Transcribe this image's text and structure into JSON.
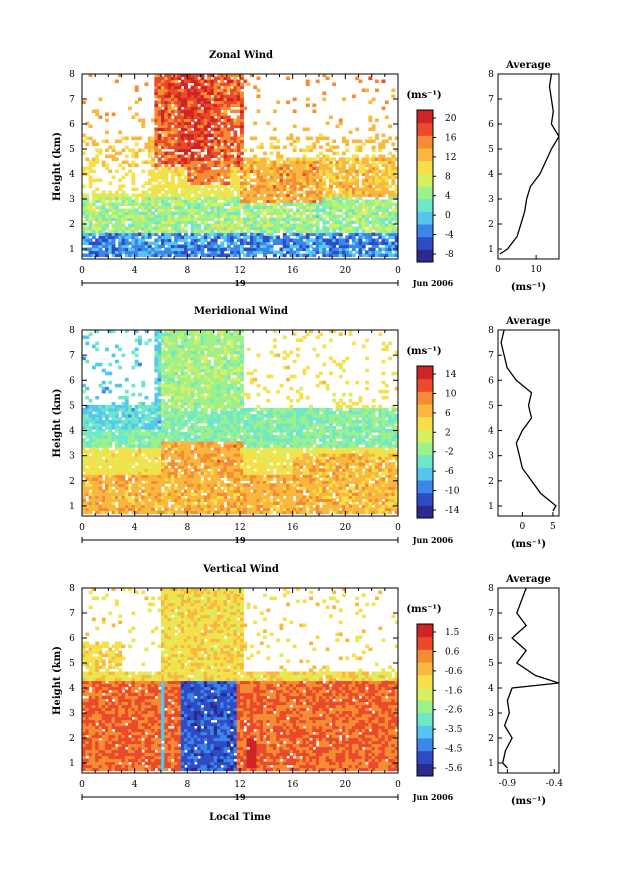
{
  "chart_data": [
    {
      "type": "heatmap",
      "title": "Zonal Wind",
      "ylabel": "Height (km)",
      "ylim": [
        0.6,
        8
      ],
      "xlim": [
        0,
        24
      ],
      "yticks": [
        "1",
        "2",
        "3",
        "4",
        "5",
        "6",
        "7",
        "8"
      ],
      "xticks": [
        "0",
        "4",
        "8",
        "12",
        "16",
        "20",
        "0"
      ],
      "date_label": "19",
      "month_label": "Jun 2006",
      "colorbar": {
        "unit": "(ms⁻¹)",
        "ticks": [
          "20",
          "16",
          "12",
          "8",
          "4",
          "0",
          "-4",
          "-8"
        ],
        "range": [
          -10,
          22
        ]
      },
      "features": [
        {
          "x": [
            6,
            12
          ],
          "y": [
            4.5,
            8
          ],
          "value_range": [
            14,
            20
          ]
        },
        {
          "x": [
            12,
            18
          ],
          "y": [
            3,
            4.5
          ],
          "value_range": [
            12,
            16
          ]
        },
        {
          "x": [
            0,
            24
          ],
          "y": [
            0.6,
            1.5
          ],
          "value_range": [
            -8,
            4
          ]
        }
      ],
      "profile": {
        "title": "Average",
        "xlabel": "(ms⁻¹)",
        "xticks": [
          "0",
          "10"
        ],
        "xlim": [
          0,
          16
        ],
        "height": [
          0.8,
          1.0,
          1.5,
          2.0,
          2.5,
          3.0,
          3.5,
          4.0,
          4.5,
          5.0,
          5.5,
          6.0,
          6.5,
          7.0,
          7.5,
          8.0
        ],
        "value": [
          0.5,
          2.5,
          5,
          6,
          7,
          7.5,
          8.5,
          11,
          12.5,
          14,
          16,
          14,
          14.5,
          14,
          13.5,
          14
        ]
      }
    },
    {
      "type": "heatmap",
      "title": "Meridional Wind",
      "ylabel": "Height (km)",
      "ylim": [
        0.6,
        8
      ],
      "xlim": [
        0,
        24
      ],
      "yticks": [
        "1",
        "2",
        "3",
        "4",
        "5",
        "6",
        "7",
        "8"
      ],
      "xticks": [
        "0",
        "4",
        "8",
        "12",
        "16",
        "20",
        "0"
      ],
      "date_label": "19",
      "month_label": "Jun 2006",
      "colorbar": {
        "unit": "(ms⁻¹)",
        "ticks": [
          "14",
          "10",
          "6",
          "2",
          "-2",
          "-6",
          "-10",
          "-14"
        ],
        "range": [
          -16,
          16
        ]
      },
      "features": [
        {
          "x": [
            6,
            12
          ],
          "y": [
            5,
            8
          ],
          "value_range": [
            -6,
            2
          ]
        },
        {
          "x": [
            0,
            24
          ],
          "y": [
            3.5,
            5
          ],
          "value_range": [
            -8,
            -2
          ]
        },
        {
          "x": [
            6,
            12
          ],
          "y": [
            1,
            3.5
          ],
          "value_range": [
            4,
            10
          ]
        }
      ],
      "profile": {
        "title": "Average",
        "xlabel": "(ms⁻¹)",
        "xticks": [
          "0",
          "5"
        ],
        "xlim": [
          -4,
          6
        ],
        "height": [
          0.8,
          1.0,
          1.5,
          2.0,
          2.5,
          3.0,
          3.5,
          4.0,
          4.5,
          5.0,
          5.5,
          6.0,
          6.5,
          7.0,
          7.5,
          8.0
        ],
        "value": [
          5,
          5.5,
          3,
          1.5,
          0,
          -0.5,
          -1,
          0,
          1.5,
          1,
          1.5,
          -1,
          -2.5,
          -3,
          -3.5,
          -3
        ]
      }
    },
    {
      "type": "heatmap",
      "title": "Vertical Wind",
      "ylabel": "Height (km)",
      "xlabel": "Local Time",
      "ylim": [
        0.6,
        8
      ],
      "xlim": [
        0,
        24
      ],
      "yticks": [
        "1",
        "2",
        "3",
        "4",
        "5",
        "6",
        "7",
        "8"
      ],
      "xticks": [
        "0",
        "4",
        "8",
        "12",
        "16",
        "20",
        "0"
      ],
      "date_label": "19",
      "month_label": "Jun 2006",
      "colorbar": {
        "unit": "(ms⁻¹)",
        "ticks": [
          "1.5",
          "0.6",
          "-0.6",
          "-1.6",
          "-2.6",
          "-3.5",
          "-4.5",
          "-5.6"
        ],
        "range": [
          -6,
          2
        ]
      },
      "features": [
        {
          "x": [
            7.5,
            11.5
          ],
          "y": [
            0.6,
            4.2
          ],
          "value_range": [
            -5.6,
            -4
          ]
        },
        {
          "x": [
            12,
            13
          ],
          "y": [
            0.8,
            2
          ],
          "value_range": [
            1,
            1.5
          ]
        }
      ],
      "profile": {
        "title": "Average",
        "xlabel": "(ms⁻¹)",
        "xticks": [
          "-0.9",
          "-0.4"
        ],
        "xlim": [
          -1,
          -0.35
        ],
        "height": [
          0.8,
          1.0,
          1.5,
          2.0,
          2.5,
          3.0,
          3.5,
          4.0,
          4.2,
          4.5,
          5.0,
          5.5,
          6.0,
          6.5,
          7.0,
          7.5,
          8.0
        ],
        "value": [
          -0.9,
          -0.95,
          -0.92,
          -0.85,
          -0.93,
          -0.88,
          -0.9,
          -0.85,
          -0.35,
          -0.6,
          -0.8,
          -0.7,
          -0.85,
          -0.7,
          -0.8,
          -0.75,
          -0.7
        ]
      }
    }
  ],
  "colors": {
    "scale": [
      "#2b2b8f",
      "#2f4cc8",
      "#3b86e8",
      "#55c6f0",
      "#6ee8c8",
      "#9ef08a",
      "#d8f060",
      "#f6e04a",
      "#f8b840",
      "#f48c34",
      "#ea4a2a",
      "#d02424"
    ]
  }
}
